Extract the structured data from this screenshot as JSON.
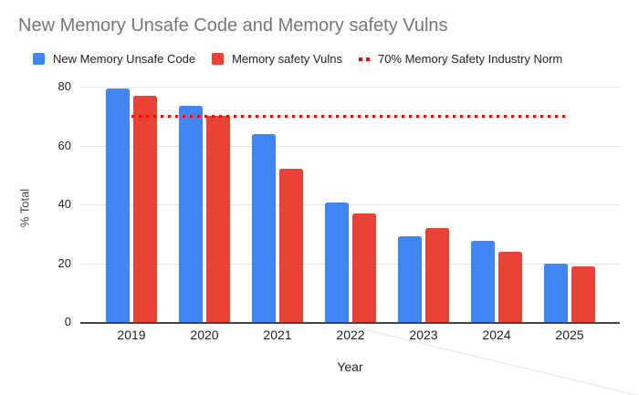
{
  "chart_data": {
    "type": "bar",
    "title": "New Memory Unsafe Code and Memory safety Vulns",
    "categories": [
      "2019",
      "2020",
      "2021",
      "2022",
      "2023",
      "2024",
      "2025"
    ],
    "series": [
      {
        "name": "New Memory Unsafe Code",
        "color": "#4285F4",
        "values": [
          79.5,
          73.5,
          64,
          40.5,
          29,
          27.5,
          20
        ]
      },
      {
        "name": "Memory safety Vulns",
        "color": "#EA4335",
        "values": [
          77,
          70,
          52,
          37,
          32,
          24,
          19
        ]
      }
    ],
    "norm_line": {
      "label": "70% Memory Safety Industry Norm",
      "value": 70,
      "color": "#FF0000",
      "style": "dotted"
    },
    "xlabel": "Year",
    "ylabel": "% Total",
    "ylim": [
      0,
      80
    ],
    "yticks": [
      0,
      20,
      40,
      60,
      80
    ],
    "grid": true,
    "legend_position": "top"
  }
}
